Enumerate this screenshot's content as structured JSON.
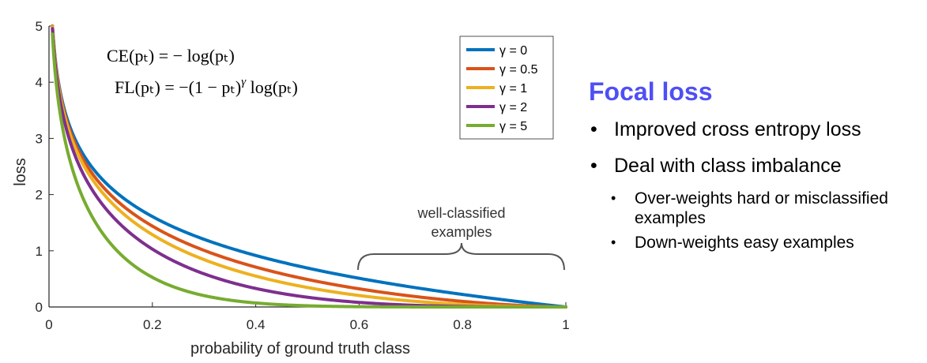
{
  "chart_data": {
    "type": "line",
    "xlabel": "probability of ground truth class",
    "ylabel": "loss",
    "xlim": [
      0,
      1
    ],
    "ylim": [
      0,
      5
    ],
    "xticks": [
      "0",
      "0.2",
      "0.4",
      "0.6",
      "0.8",
      "1"
    ],
    "yticks": [
      "0",
      "1",
      "2",
      "3",
      "4",
      "5"
    ],
    "grid": false,
    "legend_position": "top-right",
    "function": "FL(p) = -(1 - p)^gamma * log(p)",
    "series": [
      {
        "name": "γ = 0",
        "gamma": 0,
        "color": "#0072bd",
        "x": [
          0.01,
          0.05,
          0.1,
          0.2,
          0.3,
          0.4,
          0.5,
          0.6,
          0.7,
          0.8,
          0.9,
          1.0
        ],
        "y": [
          4.61,
          3.0,
          2.3,
          1.61,
          1.2,
          0.92,
          0.69,
          0.51,
          0.36,
          0.22,
          0.11,
          0.0
        ]
      },
      {
        "name": "γ = 0.5",
        "gamma": 0.5,
        "color": "#d95319",
        "x": [
          0.01,
          0.05,
          0.1,
          0.2,
          0.3,
          0.4,
          0.5,
          0.6,
          0.7,
          0.8,
          0.9,
          1.0
        ],
        "y": [
          4.58,
          2.92,
          2.18,
          1.44,
          1.01,
          0.71,
          0.49,
          0.32,
          0.2,
          0.1,
          0.03,
          0.0
        ]
      },
      {
        "name": "γ = 1",
        "gamma": 1,
        "color": "#edb120",
        "x": [
          0.01,
          0.05,
          0.1,
          0.2,
          0.3,
          0.4,
          0.5,
          0.6,
          0.7,
          0.8,
          0.9,
          1.0
        ],
        "y": [
          4.56,
          2.85,
          2.07,
          1.29,
          0.84,
          0.55,
          0.35,
          0.2,
          0.11,
          0.04,
          0.01,
          0.0
        ]
      },
      {
        "name": "γ = 2",
        "gamma": 2,
        "color": "#7e2f8e",
        "x": [
          0.01,
          0.05,
          0.1,
          0.2,
          0.3,
          0.4,
          0.5,
          0.6,
          0.7,
          0.8,
          0.9,
          1.0
        ],
        "y": [
          4.51,
          2.71,
          1.87,
          1.03,
          0.59,
          0.33,
          0.17,
          0.08,
          0.03,
          0.01,
          0.0,
          0.0
        ]
      },
      {
        "name": "γ = 5",
        "gamma": 5,
        "color": "#77ac30",
        "x": [
          0.01,
          0.05,
          0.1,
          0.2,
          0.3,
          0.4,
          0.5,
          0.6,
          0.7,
          0.8,
          0.9,
          1.0
        ],
        "y": [
          4.38,
          2.32,
          1.36,
          0.53,
          0.2,
          0.07,
          0.02,
          0.01,
          0.0,
          0.0,
          0.0,
          0.0
        ]
      }
    ],
    "annotation": {
      "line1": "well-classified",
      "line2": "examples",
      "x_range": [
        0.6,
        1.0
      ]
    },
    "formulas": {
      "ce": "CE(pₜ) = − log(pₜ)",
      "fl_left": "FL(pₜ) = −(1 − pₜ)",
      "fl_sup": "γ",
      "fl_right": " log(pₜ)"
    }
  },
  "side": {
    "title": "Focal loss",
    "title_color": "#4f4ff5",
    "bullets": [
      "Improved cross entropy loss",
      "Deal with class imbalance"
    ],
    "sub_bullets": [
      "Over-weights hard or misclassified examples",
      "Down-weights easy examples"
    ]
  }
}
